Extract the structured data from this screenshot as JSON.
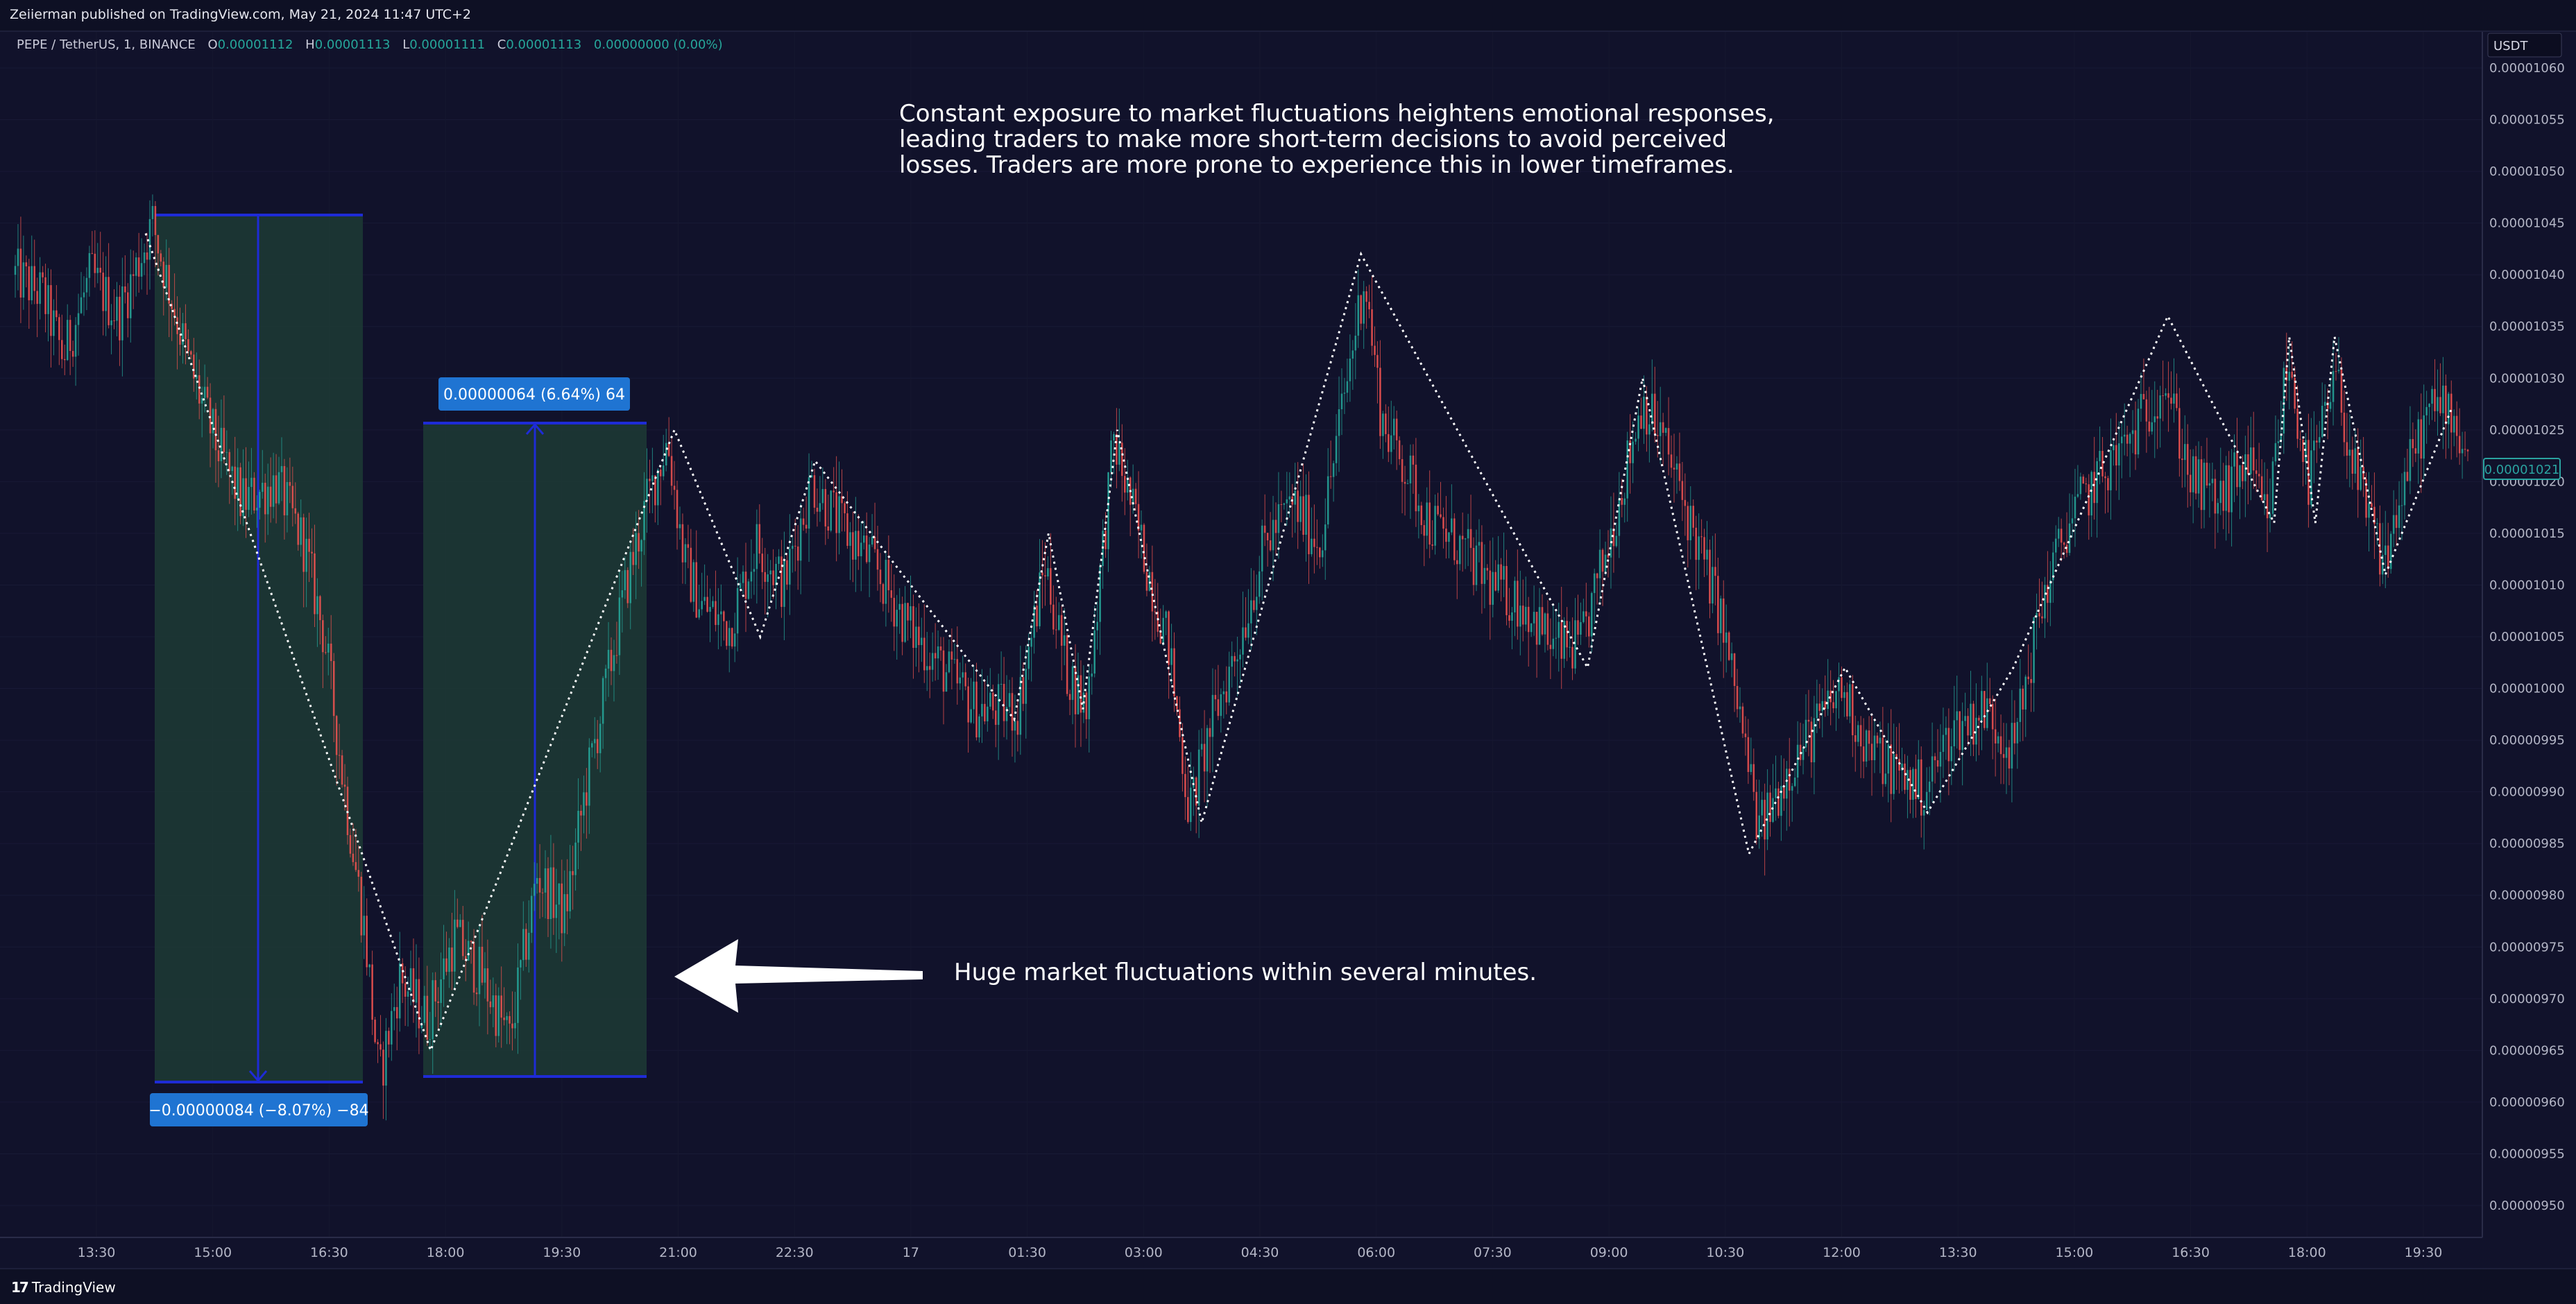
{
  "header": {
    "published": "Zeiierman published on TradingView.com, May 21, 2024 11:47 UTC+2"
  },
  "legend": {
    "symbol": "PEPE / TetherUS, 1, BINANCE",
    "open_label": "O",
    "open": "0.00001112",
    "high_label": "H",
    "high": "0.00001113",
    "low_label": "L",
    "low": "0.00001111",
    "close_label": "C",
    "close": "0.00001113",
    "change": "0.00000000 (0.00%)"
  },
  "currency": "USDT",
  "footer": {
    "brand": "TradingView",
    "logo_mark": "17"
  },
  "annotations": {
    "top_text": [
      "Constant exposure to market fluctuations heightens emotional responses,",
      "leading traders to make more short-term decisions to avoid perceived",
      "losses. Traders are more prone to experience this in lower timeframes."
    ],
    "arrow_text": "Huge market fluctuations within several minutes.",
    "range_drop_label": "−0.00000084 (−8.07%) −84",
    "range_rise_label": "0.00000064 (6.64%) 64"
  },
  "colors": {
    "background": "#11122b",
    "up": "#26a69a",
    "down": "#ef5350",
    "range_fill": "#1d3b35",
    "range_border": "#1e2bd6",
    "label_bg": "#1f74d2",
    "price_tag": "#2aa3a0"
  },
  "chart_data": {
    "type": "candlestick",
    "x_ticks": [
      "13:30",
      "15:00",
      "16:30",
      "18:00",
      "19:30",
      "21:00",
      "22:30",
      "17",
      "01:30",
      "03:00",
      "04:30",
      "06:00",
      "07:30",
      "09:00",
      "10:30",
      "12:00",
      "13:30",
      "15:00",
      "16:30",
      "18:00",
      "19:30"
    ],
    "y_ticks": [
      "0.00000950",
      "0.00000955",
      "0.00000960",
      "0.00000965",
      "0.00000970",
      "0.00000975",
      "0.00000980",
      "0.00000985",
      "0.00000990",
      "0.00000995",
      "0.00001000",
      "0.00001005",
      "0.00001010",
      "0.00001015",
      "0.00001020",
      "0.00001025",
      "0.00001030",
      "0.00001035",
      "0.00001040",
      "0.00001045",
      "0.00001050",
      "0.00001055",
      "0.00001060"
    ],
    "ylim": [
      9.5e-06,
      1.06e-05
    ],
    "last_price": "0.00001021",
    "price_path": [
      {
        "x": 0,
        "y": 1.04e-05
      },
      {
        "x": 40,
        "y": 1.038e-05
      },
      {
        "x": 70,
        "y": 1.032e-05
      },
      {
        "x": 110,
        "y": 1.04e-05
      },
      {
        "x": 150,
        "y": 1.036e-05
      },
      {
        "x": 200,
        "y": 1.045e-05
      },
      {
        "x": 250,
        "y": 1.032e-05
      },
      {
        "x": 290,
        "y": 1.024e-05
      },
      {
        "x": 330,
        "y": 1.018e-05
      },
      {
        "x": 380,
        "y": 1.02e-05
      },
      {
        "x": 420,
        "y": 1.014e-05
      },
      {
        "x": 450,
        "y": 1.005e-05
      },
      {
        "x": 480,
        "y": 9.9e-06
      },
      {
        "x": 510,
        "y": 9.76e-06
      },
      {
        "x": 530,
        "y": 9.62e-06
      },
      {
        "x": 560,
        "y": 9.72e-06
      },
      {
        "x": 600,
        "y": 9.68e-06
      },
      {
        "x": 640,
        "y": 9.76e-06
      },
      {
        "x": 680,
        "y": 9.72e-06
      },
      {
        "x": 720,
        "y": 9.66e-06
      },
      {
        "x": 760,
        "y": 9.82e-06
      },
      {
        "x": 800,
        "y": 9.78e-06
      },
      {
        "x": 830,
        "y": 9.9e-06
      },
      {
        "x": 860,
        "y": 1e-05
      },
      {
        "x": 890,
        "y": 1.01e-05
      },
      {
        "x": 920,
        "y": 1.018e-05
      },
      {
        "x": 950,
        "y": 1.024e-05
      },
      {
        "x": 975,
        "y": 1.012e-05
      },
      {
        "x": 1000,
        "y": 1.008e-05
      },
      {
        "x": 1040,
        "y": 1.006e-05
      },
      {
        "x": 1080,
        "y": 1.014e-05
      },
      {
        "x": 1120,
        "y": 1.01e-05
      },
      {
        "x": 1160,
        "y": 1.02e-05
      },
      {
        "x": 1200,
        "y": 1.016e-05
      },
      {
        "x": 1250,
        "y": 1.012e-05
      },
      {
        "x": 1300,
        "y": 1.006e-05
      },
      {
        "x": 1350,
        "y": 1.002e-05
      },
      {
        "x": 1400,
        "y": 9.98e-06
      },
      {
        "x": 1460,
        "y": 9.98e-06
      },
      {
        "x": 1500,
        "y": 1.012e-05
      },
      {
        "x": 1530,
        "y": 1.002e-05
      },
      {
        "x": 1560,
        "y": 9.98e-06
      },
      {
        "x": 1600,
        "y": 1.024e-05
      },
      {
        "x": 1640,
        "y": 1.014e-05
      },
      {
        "x": 1680,
        "y": 1.004e-05
      },
      {
        "x": 1710,
        "y": 9.88e-06
      },
      {
        "x": 1740,
        "y": 9.96e-06
      },
      {
        "x": 1780,
        "y": 1.004e-05
      },
      {
        "x": 1820,
        "y": 1.014e-05
      },
      {
        "x": 1860,
        "y": 1.018e-05
      },
      {
        "x": 1900,
        "y": 1.014e-05
      },
      {
        "x": 1940,
        "y": 1.03e-05
      },
      {
        "x": 1965,
        "y": 1.04e-05
      },
      {
        "x": 1990,
        "y": 1.026e-05
      },
      {
        "x": 2020,
        "y": 1.022e-05
      },
      {
        "x": 2060,
        "y": 1.016e-05
      },
      {
        "x": 2100,
        "y": 1.014e-05
      },
      {
        "x": 2150,
        "y": 1.01e-05
      },
      {
        "x": 2200,
        "y": 1.008e-05
      },
      {
        "x": 2240,
        "y": 1.004e-05
      },
      {
        "x": 2280,
        "y": 1.004e-05
      },
      {
        "x": 2320,
        "y": 1.014e-05
      },
      {
        "x": 2370,
        "y": 1.028e-05
      },
      {
        "x": 2400,
        "y": 1.024e-05
      },
      {
        "x": 2440,
        "y": 1.016e-05
      },
      {
        "x": 2480,
        "y": 1.008e-05
      },
      {
        "x": 2510,
        "y": 9.98e-06
      },
      {
        "x": 2540,
        "y": 9.86e-06
      },
      {
        "x": 2580,
        "y": 9.92e-06
      },
      {
        "x": 2620,
        "y": 9.96e-06
      },
      {
        "x": 2660,
        "y": 1e-05
      },
      {
        "x": 2700,
        "y": 9.94e-06
      },
      {
        "x": 2740,
        "y": 9.92e-06
      },
      {
        "x": 2780,
        "y": 9.9e-06
      },
      {
        "x": 2820,
        "y": 9.96e-06
      },
      {
        "x": 2870,
        "y": 9.98e-06
      },
      {
        "x": 2910,
        "y": 9.94e-06
      },
      {
        "x": 2950,
        "y": 1.008e-05
      },
      {
        "x": 2990,
        "y": 1.016e-05
      },
      {
        "x": 3030,
        "y": 1.02e-05
      },
      {
        "x": 3080,
        "y": 1.024e-05
      },
      {
        "x": 3130,
        "y": 1.03e-05
      },
      {
        "x": 3170,
        "y": 1.02e-05
      },
      {
        "x": 3210,
        "y": 1.018e-05
      },
      {
        "x": 3250,
        "y": 1.022e-05
      },
      {
        "x": 3280,
        "y": 1.016e-05
      },
      {
        "x": 3310,
        "y": 1.032e-05
      },
      {
        "x": 3340,
        "y": 1.02e-05
      },
      {
        "x": 3380,
        "y": 1.03e-05
      },
      {
        "x": 3410,
        "y": 1.02e-05
      },
      {
        "x": 3450,
        "y": 1.012e-05
      },
      {
        "x": 3480,
        "y": 1.02e-05
      },
      {
        "x": 3510,
        "y": 1.026e-05
      },
      {
        "x": 3540,
        "y": 1.028e-05
      },
      {
        "x": 3575,
        "y": 1.022e-05
      }
    ],
    "zigzag": [
      {
        "x": 190,
        "y": 1.044e-05
      },
      {
        "x": 605,
        "y": 9.65e-06
      },
      {
        "x": 960,
        "y": 1.025e-05
      },
      {
        "x": 1085,
        "y": 1.005e-05
      },
      {
        "x": 1165,
        "y": 1.022e-05
      },
      {
        "x": 1455,
        "y": 9.97e-06
      },
      {
        "x": 1505,
        "y": 1.015e-05
      },
      {
        "x": 1555,
        "y": 9.98e-06
      },
      {
        "x": 1605,
        "y": 1.025e-05
      },
      {
        "x": 1728,
        "y": 9.87e-06
      },
      {
        "x": 1960,
        "y": 1.042e-05
      },
      {
        "x": 2290,
        "y": 1.002e-05
      },
      {
        "x": 2370,
        "y": 1.03e-05
      },
      {
        "x": 2525,
        "y": 9.84e-06
      },
      {
        "x": 2665,
        "y": 1.002e-05
      },
      {
        "x": 2785,
        "y": 9.88e-06
      },
      {
        "x": 2910,
        "y": 1.002e-05
      },
      {
        "x": 3135,
        "y": 1.036e-05
      },
      {
        "x": 3290,
        "y": 1.016e-05
      },
      {
        "x": 3312,
        "y": 1.034e-05
      },
      {
        "x": 3350,
        "y": 1.016e-05
      },
      {
        "x": 3378,
        "y": 1.034e-05
      },
      {
        "x": 3452,
        "y": 1.011e-05
      },
      {
        "x": 3548,
        "y": 1.027e-05
      }
    ]
  }
}
